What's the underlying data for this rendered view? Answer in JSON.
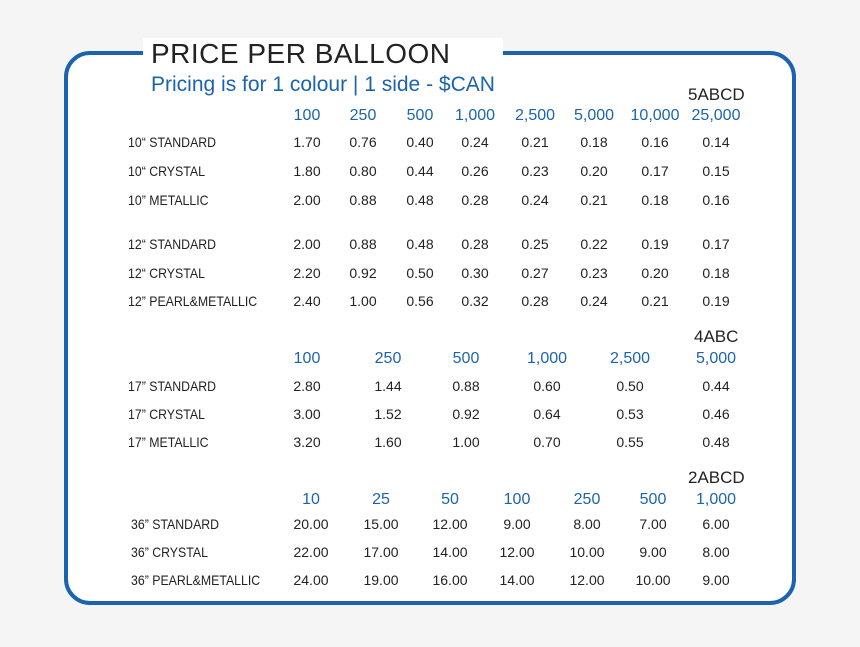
{
  "title": "PRICE PER BALLOON",
  "subtitle": "Pricing is for 1 colour | 1 side - $CAN",
  "sections": [
    {
      "code": "5ABCD",
      "quantities": [
        "100",
        "250",
        "500",
        "1,000",
        "2,500",
        "5,000",
        "10,000",
        "25,000"
      ],
      "rows": [
        {
          "label": "10“ STANDARD",
          "prices": [
            "1.70",
            "0.76",
            "0.40",
            "0.24",
            "0.21",
            "0.18",
            "0.16",
            "0.14"
          ]
        },
        {
          "label": "10“ CRYSTAL",
          "prices": [
            "1.80",
            "0.80",
            "0.44",
            "0.26",
            "0.23",
            "0.20",
            "0.17",
            "0.15"
          ]
        },
        {
          "label": "10” METALLIC",
          "prices": [
            "2.00",
            "0.88",
            "0.48",
            "0.28",
            "0.24",
            "0.21",
            "0.18",
            "0.16"
          ]
        },
        {
          "label": "12“ STANDARD",
          "prices": [
            "2.00",
            "0.88",
            "0.48",
            "0.28",
            "0.25",
            "0.22",
            "0.19",
            "0.17"
          ]
        },
        {
          "label": "12“ CRYSTAL",
          "prices": [
            "2.20",
            "0.92",
            "0.50",
            "0.30",
            "0.27",
            "0.23",
            "0.20",
            "0.18"
          ]
        },
        {
          "label": "12” PEARL&METALLIC",
          "prices": [
            "2.40",
            "1.00",
            "0.56",
            "0.32",
            "0.28",
            "0.24",
            "0.21",
            "0.19"
          ]
        }
      ]
    },
    {
      "code": "4ABC",
      "quantities": [
        "100",
        "250",
        "500",
        "1,000",
        "2,500",
        "5,000"
      ],
      "rows": [
        {
          "label": "17” STANDARD",
          "prices": [
            "2.80",
            "1.44",
            "0.88",
            "0.60",
            "0.50",
            "0.44"
          ]
        },
        {
          "label": "17” CRYSTAL",
          "prices": [
            "3.00",
            "1.52",
            "0.92",
            "0.64",
            "0.53",
            "0.46"
          ]
        },
        {
          "label": "17” METALLIC",
          "prices": [
            "3.20",
            "1.60",
            "1.00",
            "0.70",
            "0.55",
            "0.48"
          ]
        }
      ]
    },
    {
      "code": "2ABCD",
      "quantities": [
        "10",
        "25",
        "50",
        "100",
        "250",
        "500",
        "1,000"
      ],
      "rows": [
        {
          "label": "36” STANDARD",
          "prices": [
            "20.00",
            "15.00",
            "12.00",
            "9.00",
            "8.00",
            "7.00",
            "6.00"
          ]
        },
        {
          "label": "36” CRYSTAL",
          "prices": [
            "22.00",
            "17.00",
            "14.00",
            "12.00",
            "10.00",
            "9.00",
            "8.00"
          ]
        },
        {
          "label": "36” PEARL&METALLIC",
          "prices": [
            "24.00",
            "19.00",
            "16.00",
            "14.00",
            "12.00",
            "10.00",
            "9.00"
          ]
        }
      ]
    }
  ],
  "colors": {
    "accent": "#1b64ad",
    "text": "#222222",
    "background": "#f5f5f5"
  }
}
